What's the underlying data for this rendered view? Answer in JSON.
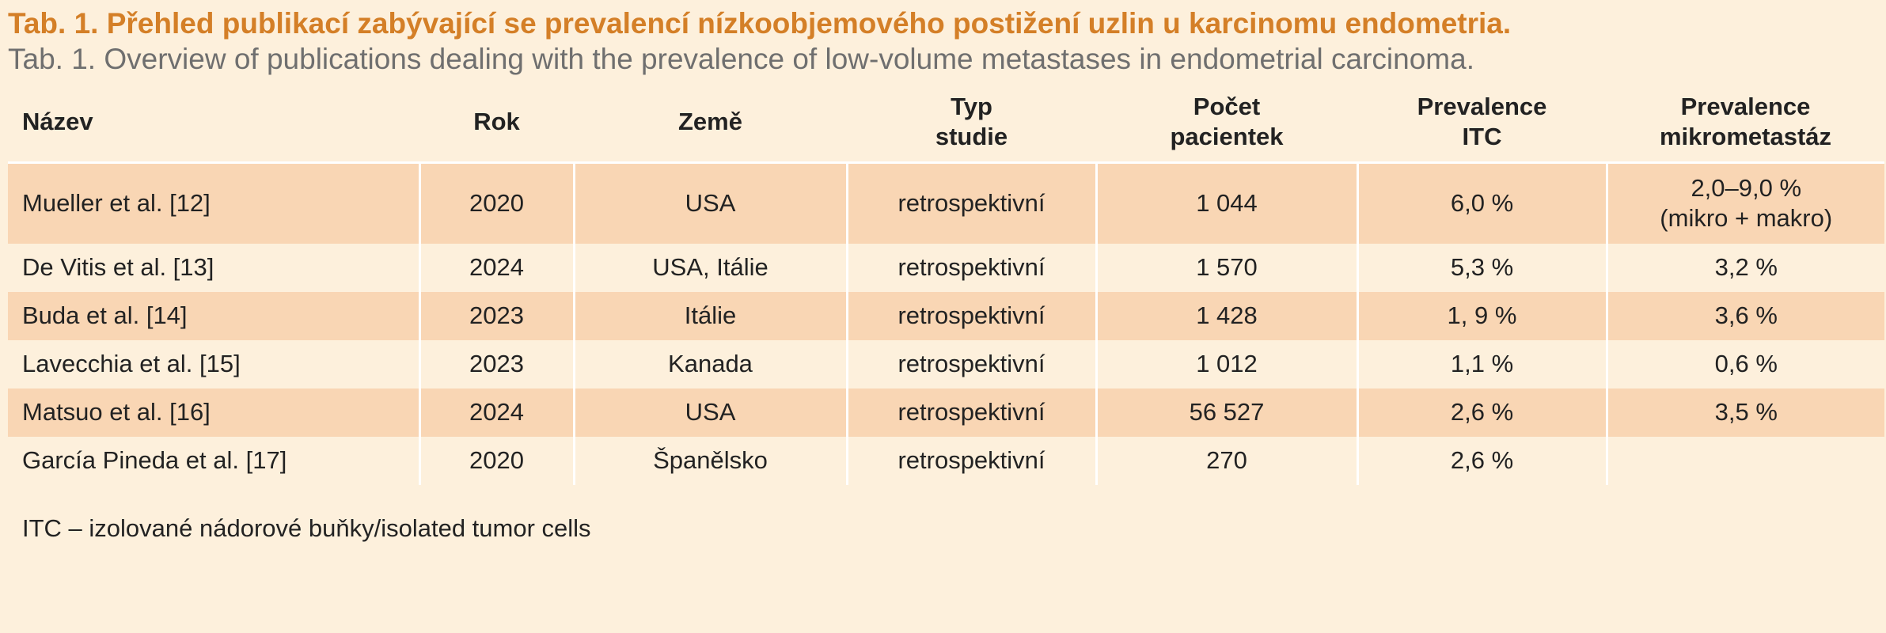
{
  "title_cz": "Tab. 1. Přehled publikací zabývající se prevalencí nízkoobjemového postižení uzlin u karcinomu endometria.",
  "title_en": "Tab. 1. Overview of publications dealing with the prevalence of low-volume metastases in endometrial carcinoma.",
  "headers": {
    "name": "Název",
    "year": "Rok",
    "country": "Země",
    "type_l1": "Typ",
    "type_l2": "studie",
    "count_l1": "Počet",
    "count_l2": "pacientek",
    "itc_l1": "Prevalence",
    "itc_l2": "ITC",
    "micro_l1": "Prevalence",
    "micro_l2": "mikrometastáz"
  },
  "rows": [
    {
      "name": "Mueller et al. [12]",
      "year": "2020",
      "country": "USA",
      "type": "retrospektivní",
      "count": "1 044",
      "itc": "6,0 %",
      "micro_l1": "2,0–9,0 %",
      "micro_l2": "(mikro + makro)"
    },
    {
      "name": "De Vitis et al. [13]",
      "year": "2024",
      "country": "USA, Itálie",
      "type": "retrospektivní",
      "count": "1 570",
      "itc": "5,3 %",
      "micro": "3,2 %"
    },
    {
      "name": "Buda et al. [14]",
      "year": "2023",
      "country": "Itálie",
      "type": "retrospektivní",
      "count": "1 428",
      "itc": "1, 9 %",
      "micro": "3,6 %"
    },
    {
      "name": "Lavecchia et al. [15]",
      "year": "2023",
      "country": "Kanada",
      "type": "retrospektivní",
      "count": "1 012",
      "itc": "1,1 %",
      "micro": "0,6 %"
    },
    {
      "name": "Matsuo et al. [16]",
      "year": "2024",
      "country": "USA",
      "type": "retrospektivní",
      "count": "56 527",
      "itc": "2,6 %",
      "micro": "3,5 %"
    },
    {
      "name": "García Pineda et al. [17]",
      "year": "2020",
      "country": "Španělsko",
      "type": "retrospektivní",
      "count": "270",
      "itc": "2,6 %",
      "micro": ""
    }
  ],
  "footnote": "ITC – izolované nádorové buňky/isolated tumor cells",
  "colors": {
    "background": "#fdf0dc",
    "shaded_row": "#f9d6b4",
    "title_accent": "#d47f27",
    "subtitle_gray": "#6f6f6f"
  }
}
